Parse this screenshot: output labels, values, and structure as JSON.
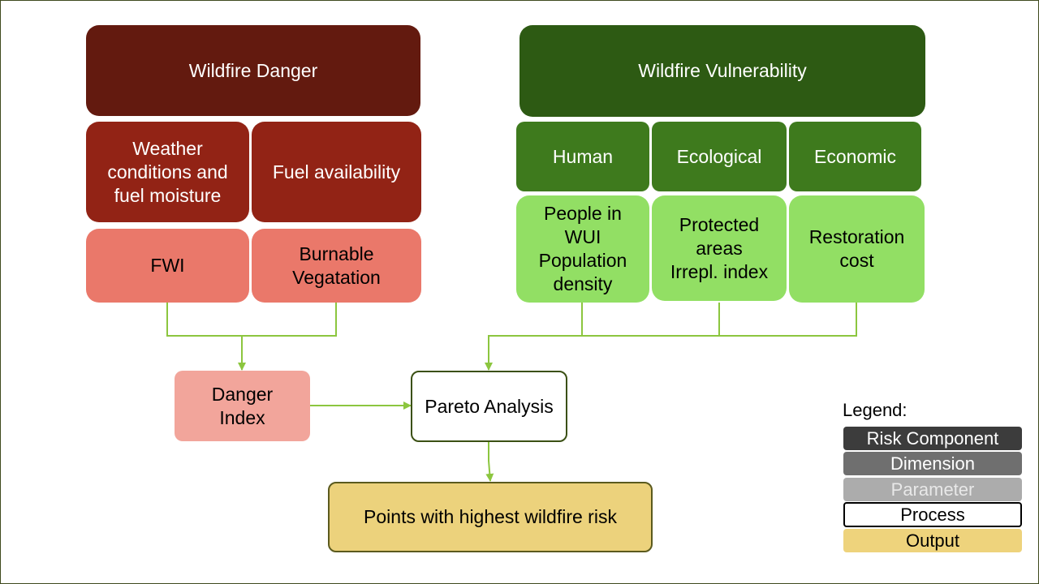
{
  "danger": {
    "component": "Wildfire Danger",
    "dimensions": [
      "Weather\nconditions and\nfuel moisture",
      "Fuel availability"
    ],
    "parameters": [
      "FWI",
      "Burnable\nVegatation"
    ]
  },
  "vulnerability": {
    "component": "Wildfire Vulnerability",
    "dimensions": [
      "Human",
      "Ecological",
      "Economic"
    ],
    "parameters": [
      "People in\nWUI\nPopulation\ndensity",
      "Protected\nareas\nIrrepl. index",
      "Restoration\ncost"
    ]
  },
  "danger_index": "Danger\nIndex",
  "process": "Pareto Analysis",
  "output": "Points with highest wildfire risk",
  "legend": {
    "title": "Legend:",
    "items": [
      "Risk Component",
      "Dimension",
      "Parameter",
      "Process",
      "Output"
    ]
  },
  "colors": {
    "connector": "#8cc63f",
    "danger_component": "#631a0f",
    "danger_dimension": "#922315",
    "danger_parameter": "#ea786a",
    "danger_index": "#f2a59b",
    "vulnerability_component": "#2d5a13",
    "vulnerability_dimension": "#3e7a1d",
    "vulnerability_parameter": "#92df64",
    "output": "#ecd27c"
  }
}
